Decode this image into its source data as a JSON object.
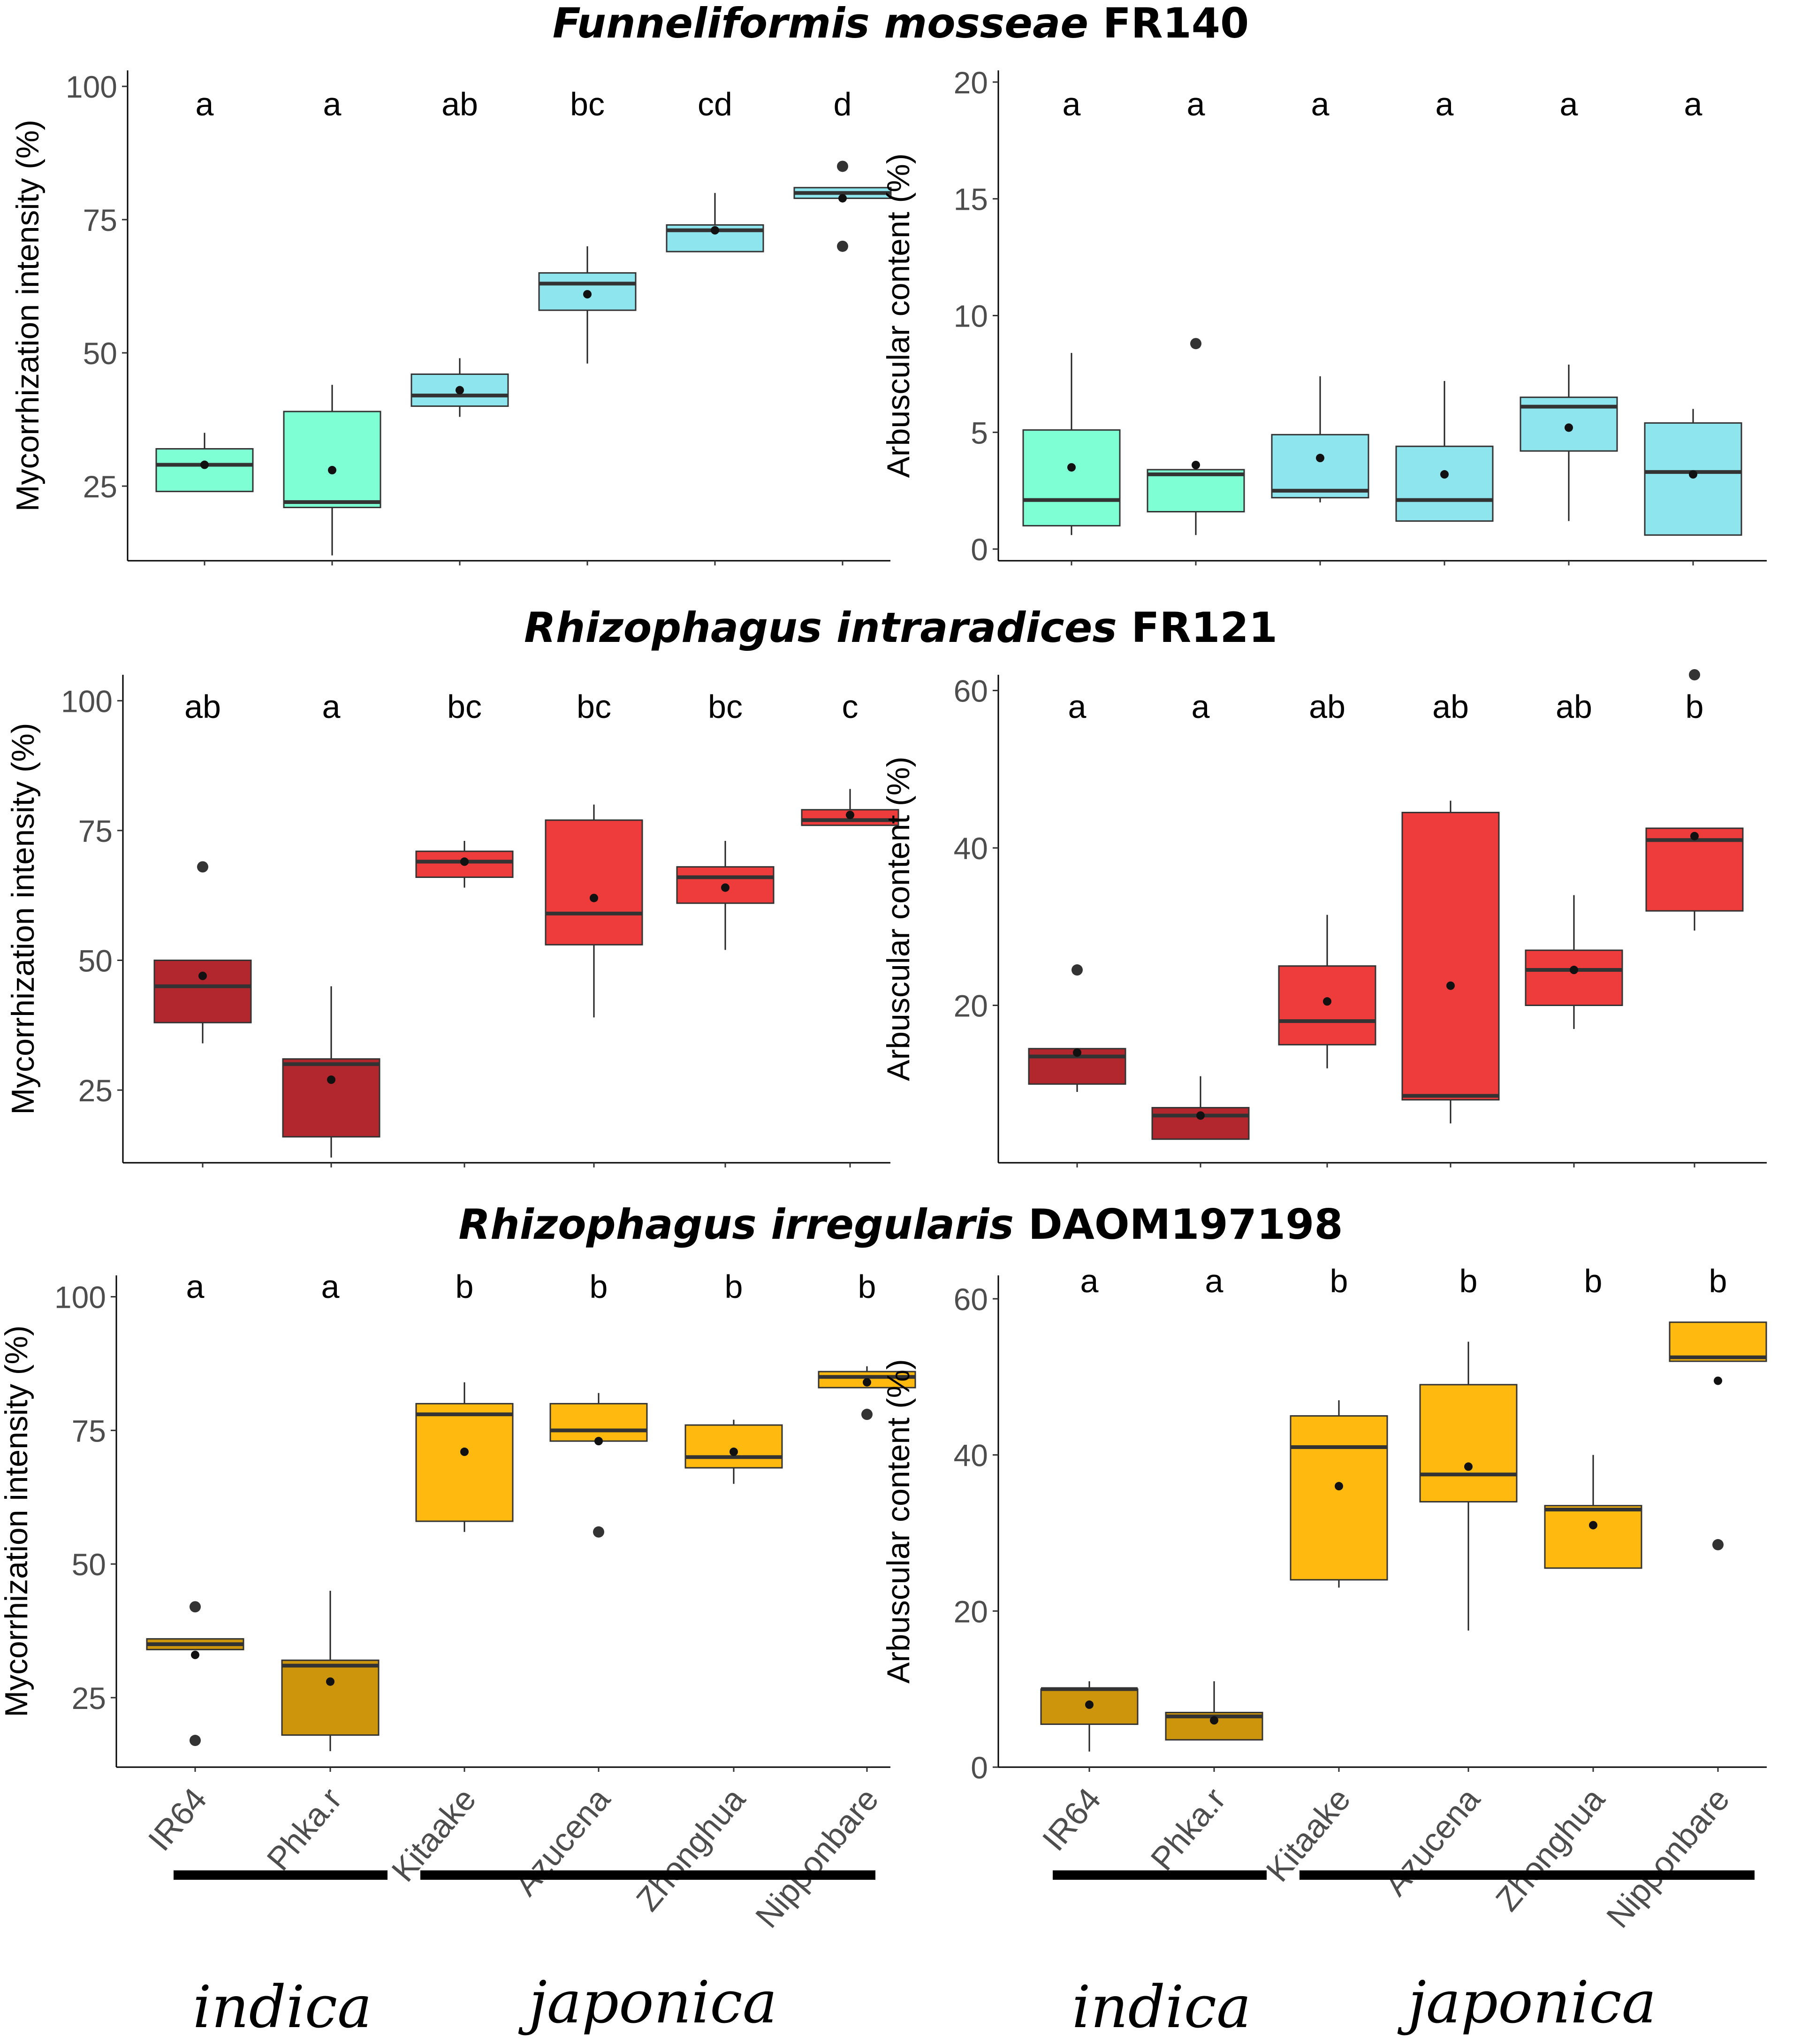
{
  "figure": {
    "group_labels": {
      "indica": "indica",
      "japonica": "japonica"
    }
  },
  "chart_data": [
    {
      "type": "box",
      "section": "Funneliformis mosseae FR140",
      "species": "Funneliformis mosseae",
      "strain": "FR140",
      "ylabel": "Mycorrhization intensity (%)",
      "ylim": [
        11,
        103
      ],
      "yticks": [
        25,
        50,
        75,
        100
      ],
      "categories": [
        "IR64",
        "Phka.r",
        "Kitaake",
        "Azucena",
        "Zhonghua",
        "Nipponbare"
      ],
      "show_xlabels": false,
      "letters": [
        "a",
        "a",
        "ab",
        "bc",
        "cd",
        "d"
      ],
      "colors": [
        "#7fffd4",
        "#7fffd4",
        "#8ee5ee",
        "#8ee5ee",
        "#8ee5ee",
        "#8ee5ee"
      ],
      "boxes": [
        {
          "min": 24,
          "q1": 24,
          "median": 29,
          "q3": 32,
          "max": 35,
          "mean": 29,
          "outliers": []
        },
        {
          "min": 12,
          "q1": 21,
          "median": 22,
          "q3": 39,
          "max": 44,
          "mean": 28,
          "outliers": []
        },
        {
          "min": 38,
          "q1": 40,
          "median": 42,
          "q3": 46,
          "max": 49,
          "mean": 43,
          "outliers": []
        },
        {
          "min": 48,
          "q1": 58,
          "median": 63,
          "q3": 65,
          "max": 70,
          "mean": 61,
          "outliers": []
        },
        {
          "min": 69,
          "q1": 69,
          "median": 73,
          "q3": 74,
          "max": 80,
          "mean": 73,
          "outliers": []
        },
        {
          "min": 79,
          "q1": 79,
          "median": 80,
          "q3": 81,
          "max": 81,
          "mean": 79,
          "outliers": [
            70,
            85
          ]
        }
      ]
    },
    {
      "type": "box",
      "section": "Funneliformis mosseae FR140",
      "ylabel": "Arbuscular content (%)",
      "ylim": [
        -0.5,
        20.5
      ],
      "yticks": [
        0,
        5,
        10,
        15,
        20
      ],
      "categories": [
        "IR64",
        "Phka.r",
        "Kitaake",
        "Azucena",
        "Zhonghua",
        "Nipponbare"
      ],
      "show_xlabels": false,
      "letters": [
        "a",
        "a",
        "a",
        "a",
        "a",
        "a"
      ],
      "colors": [
        "#7fffd4",
        "#7fffd4",
        "#8ee5ee",
        "#8ee5ee",
        "#8ee5ee",
        "#8ee5ee"
      ],
      "boxes": [
        {
          "min": 0.6,
          "q1": 1.0,
          "median": 2.1,
          "q3": 5.1,
          "max": 8.4,
          "mean": 3.5,
          "outliers": []
        },
        {
          "min": 0.6,
          "q1": 1.6,
          "median": 3.2,
          "q3": 3.4,
          "max": 3.4,
          "mean": 3.6,
          "outliers": [
            8.8
          ]
        },
        {
          "min": 2.0,
          "q1": 2.2,
          "median": 2.5,
          "q3": 4.9,
          "max": 7.4,
          "mean": 3.9,
          "outliers": []
        },
        {
          "min": 1.2,
          "q1": 1.2,
          "median": 2.1,
          "q3": 4.4,
          "max": 7.2,
          "mean": 3.2,
          "outliers": []
        },
        {
          "min": 1.2,
          "q1": 4.2,
          "median": 6.1,
          "q3": 6.5,
          "max": 7.9,
          "mean": 5.2,
          "outliers": []
        },
        {
          "min": 0.6,
          "q1": 0.6,
          "median": 3.3,
          "q3": 5.4,
          "max": 6.0,
          "mean": 3.2,
          "outliers": []
        }
      ]
    },
    {
      "type": "box",
      "section": "Rhizophagus intraradices FR121",
      "species": "Rhizophagus intraradices",
      "strain": "FR121",
      "ylabel": "Mycorrhization intensity (%)",
      "ylim": [
        11,
        105
      ],
      "yticks": [
        25,
        50,
        75,
        100
      ],
      "categories": [
        "IR64",
        "Phka.r",
        "Kitaake",
        "Azucena",
        "Zhonghua",
        "Nipponbare"
      ],
      "show_xlabels": false,
      "letters": [
        "ab",
        "a",
        "bc",
        "bc",
        "bc",
        "c"
      ],
      "colors": [
        "#b2272d",
        "#b2272d",
        "#ee3b3b",
        "#ee3b3b",
        "#ee3b3b",
        "#ee3b3b"
      ],
      "boxes": [
        {
          "min": 34,
          "q1": 38,
          "median": 45,
          "q3": 50,
          "max": 50,
          "mean": 47,
          "outliers": [
            68
          ]
        },
        {
          "min": 12,
          "q1": 16,
          "median": 30,
          "q3": 31,
          "max": 45,
          "mean": 27,
          "outliers": []
        },
        {
          "min": 64,
          "q1": 66,
          "median": 69,
          "q3": 71,
          "max": 73,
          "mean": 69,
          "outliers": []
        },
        {
          "min": 39,
          "q1": 53,
          "median": 59,
          "q3": 77,
          "max": 80,
          "mean": 62,
          "outliers": []
        },
        {
          "min": 52,
          "q1": 61,
          "median": 66,
          "q3": 68,
          "max": 73,
          "mean": 64,
          "outliers": []
        },
        {
          "min": 76,
          "q1": 76,
          "median": 77,
          "q3": 79,
          "max": 83,
          "mean": 78,
          "outliers": []
        }
      ]
    },
    {
      "type": "box",
      "section": "Rhizophagus intraradices FR121",
      "ylabel": "Arbuscular content (%)",
      "ylim": [
        0,
        62
      ],
      "yticks": [
        20,
        40,
        60
      ],
      "categories": [
        "IR64",
        "Phka.r",
        "Kitaake",
        "Azucena",
        "Zhonghua",
        "Nipponbare"
      ],
      "show_xlabels": false,
      "letters": [
        "a",
        "a",
        "ab",
        "ab",
        "ab",
        "b"
      ],
      "colors": [
        "#b2272d",
        "#b2272d",
        "#ee3b3b",
        "#ee3b3b",
        "#ee3b3b",
        "#ee3b3b"
      ],
      "boxes": [
        {
          "min": 9,
          "q1": 10,
          "median": 13.5,
          "q3": 14.5,
          "max": 14.5,
          "mean": 14,
          "outliers": [
            24.5
          ]
        },
        {
          "min": 3,
          "q1": 3,
          "median": 6,
          "q3": 7,
          "max": 11,
          "mean": 6,
          "outliers": []
        },
        {
          "min": 12,
          "q1": 15,
          "median": 18,
          "q3": 25,
          "max": 31.5,
          "mean": 20.5,
          "outliers": []
        },
        {
          "min": 5,
          "q1": 8,
          "median": 8.5,
          "q3": 44.5,
          "max": 46,
          "mean": 22.5,
          "outliers": []
        },
        {
          "min": 17,
          "q1": 20,
          "median": 24.5,
          "q3": 27,
          "max": 34,
          "mean": 24.5,
          "outliers": []
        },
        {
          "min": 29.5,
          "q1": 32,
          "median": 41,
          "q3": 42.5,
          "max": 42.5,
          "mean": 41.5,
          "outliers": [
            62
          ]
        }
      ]
    },
    {
      "type": "box",
      "section": "Rhizophagus irregularis DAOM197198",
      "species": "Rhizophagus irregularis",
      "strain": "DAOM197198",
      "ylabel": "Mycorrhization intensity (%)",
      "ylim": [
        12,
        104
      ],
      "yticks": [
        25,
        50,
        75,
        100
      ],
      "categories": [
        "IR64",
        "Phka.r",
        "Kitaake",
        "Azucena",
        "Zhonghua",
        "Nipponbare"
      ],
      "show_xlabels": true,
      "letters": [
        "a",
        "a",
        "b",
        "b",
        "b",
        "b"
      ],
      "colors": [
        "#cd950c",
        "#cd950c",
        "#ffb90f",
        "#ffb90f",
        "#ffb90f",
        "#ffb90f"
      ],
      "boxes": [
        {
          "min": 34,
          "q1": 34,
          "median": 35,
          "q3": 36,
          "max": 36,
          "mean": 33,
          "outliers": [
            17,
            42
          ]
        },
        {
          "min": 15,
          "q1": 18,
          "median": 31,
          "q3": 32,
          "max": 45,
          "mean": 28,
          "outliers": []
        },
        {
          "min": 56,
          "q1": 58,
          "median": 78,
          "q3": 80,
          "max": 84,
          "mean": 71,
          "outliers": []
        },
        {
          "min": 73,
          "q1": 73,
          "median": 75,
          "q3": 80,
          "max": 82,
          "mean": 73,
          "outliers": [
            56
          ]
        },
        {
          "min": 65,
          "q1": 68,
          "median": 70,
          "q3": 76,
          "max": 77,
          "mean": 71,
          "outliers": []
        },
        {
          "min": 83,
          "q1": 83,
          "median": 85,
          "q3": 86,
          "max": 87,
          "mean": 84,
          "outliers": [
            78
          ]
        }
      ]
    },
    {
      "type": "box",
      "section": "Rhizophagus irregularis DAOM197198",
      "ylabel": "Arbuscular content (%)",
      "ylim": [
        0,
        63
      ],
      "yticks": [
        0,
        20,
        40,
        60
      ],
      "categories": [
        "IR64",
        "Phka.r",
        "Kitaake",
        "Azucena",
        "Zhonghua",
        "Nipponbare"
      ],
      "show_xlabels": true,
      "letters": [
        "a",
        "a",
        "b",
        "b",
        "b",
        "b"
      ],
      "colors": [
        "#cd950c",
        "#cd950c",
        "#ffb90f",
        "#ffb90f",
        "#ffb90f",
        "#ffb90f"
      ],
      "boxes": [
        {
          "min": 2,
          "q1": 5.5,
          "median": 10,
          "q3": 10,
          "max": 11,
          "mean": 8,
          "outliers": []
        },
        {
          "min": 3.5,
          "q1": 3.5,
          "median": 6.5,
          "q3": 7,
          "max": 11,
          "mean": 6,
          "outliers": []
        },
        {
          "min": 23,
          "q1": 24,
          "median": 41,
          "q3": 45,
          "max": 47,
          "mean": 36,
          "outliers": []
        },
        {
          "min": 17.5,
          "q1": 34,
          "median": 37.5,
          "q3": 49,
          "max": 54.5,
          "mean": 38.5,
          "outliers": []
        },
        {
          "min": 25.5,
          "q1": 25.5,
          "median": 33,
          "q3": 33.5,
          "max": 40,
          "mean": 31,
          "outliers": []
        },
        {
          "min": 52,
          "q1": 52,
          "median": 52.5,
          "q3": 57,
          "max": 57,
          "mean": 49.5,
          "outliers": [
            28.5
          ]
        }
      ]
    }
  ]
}
